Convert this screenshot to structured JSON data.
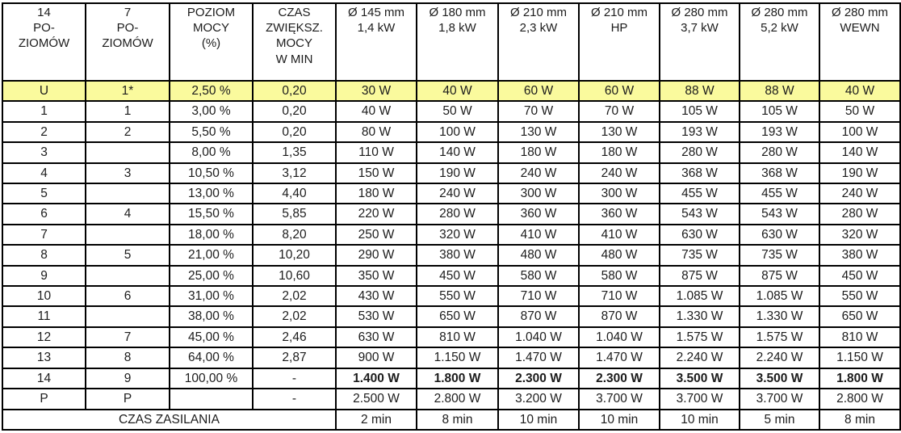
{
  "table": {
    "highlight_color": "#fafa9d",
    "border_color": "#000000",
    "text_color": "#1c1c1c",
    "headers": [
      "14\nPO-\nZIOMÓW",
      "7\nPO-\nZIOMÓW",
      "POZIOM\nMOCY\n(%)",
      "CZAS\nZWIĘKSZ.\nMOCY\nW MIN",
      "Ø 145 mm\n1,4 kW",
      "Ø 180 mm\n1,8 kW",
      "Ø 210 mm\n2,3 kW",
      "Ø 210 mm\nHP",
      "Ø 280 mm\n3,7 kW",
      "Ø 280 mm\n5,2 kW",
      "Ø 280 mm\nWEWN"
    ],
    "rows": [
      {
        "highlight": true,
        "bold_values": false,
        "cells": [
          "U",
          "1*",
          "2,50 %",
          "0,20",
          "30 W",
          "40 W",
          "60 W",
          "60 W",
          "88 W",
          "88 W",
          "40 W"
        ]
      },
      {
        "highlight": false,
        "bold_values": false,
        "cells": [
          "1",
          "1",
          "3,00 %",
          "0,20",
          "40 W",
          "50 W",
          "70 W",
          "70 W",
          "105 W",
          "105 W",
          "50 W"
        ]
      },
      {
        "highlight": false,
        "bold_values": false,
        "cells": [
          "2",
          "2",
          "5,50 %",
          "0,20",
          "80 W",
          "100 W",
          "130 W",
          "130 W",
          "193 W",
          "193 W",
          "100 W"
        ]
      },
      {
        "highlight": false,
        "bold_values": false,
        "cells": [
          "3",
          "",
          "8,00 %",
          "1,35",
          "110 W",
          "140 W",
          "180 W",
          "180 W",
          "280 W",
          "280 W",
          "140 W"
        ]
      },
      {
        "highlight": false,
        "bold_values": false,
        "cells": [
          "4",
          "3",
          "10,50 %",
          "3,12",
          "150 W",
          "190 W",
          "240 W",
          "240 W",
          "368 W",
          "368 W",
          "190 W"
        ]
      },
      {
        "highlight": false,
        "bold_values": false,
        "cells": [
          "5",
          "",
          "13,00 %",
          "4,40",
          "180 W",
          "240 W",
          "300 W",
          "300 W",
          "455 W",
          "455 W",
          "240 W"
        ]
      },
      {
        "highlight": false,
        "bold_values": false,
        "cells": [
          "6",
          "4",
          "15,50 %",
          "5,85",
          "220 W",
          "280 W",
          "360 W",
          "360 W",
          "543 W",
          "543 W",
          "280 W"
        ]
      },
      {
        "highlight": false,
        "bold_values": false,
        "cells": [
          "7",
          "",
          "18,00 %",
          "8,20",
          "250 W",
          "320 W",
          "410 W",
          "410 W",
          "630 W",
          "630 W",
          "320 W"
        ]
      },
      {
        "highlight": false,
        "bold_values": false,
        "cells": [
          "8",
          "5",
          "21,00 %",
          "10,20",
          "290 W",
          "380 W",
          "480 W",
          "480 W",
          "735 W",
          "735 W",
          "380 W"
        ]
      },
      {
        "highlight": false,
        "bold_values": false,
        "cells": [
          "9",
          "",
          "25,00 %",
          "10,60",
          "350 W",
          "450 W",
          "580 W",
          "580 W",
          "875 W",
          "875 W",
          "450 W"
        ]
      },
      {
        "highlight": false,
        "bold_values": false,
        "cells": [
          "10",
          "6",
          "31,00 %",
          "2,02",
          "430 W",
          "550 W",
          "710 W",
          "710 W",
          "1.085 W",
          "1.085 W",
          "550 W"
        ]
      },
      {
        "highlight": false,
        "bold_values": false,
        "cells": [
          "11",
          "",
          "38,00 %",
          "2,02",
          "530 W",
          "650 W",
          "870 W",
          "870 W",
          "1.330 W",
          "1.330 W",
          "650 W"
        ]
      },
      {
        "highlight": false,
        "bold_values": false,
        "cells": [
          "12",
          "7",
          "45,00 %",
          "2,46",
          "630 W",
          "810 W",
          "1.040 W",
          "1.040 W",
          "1.575 W",
          "1.575 W",
          "810 W"
        ]
      },
      {
        "highlight": false,
        "bold_values": false,
        "cells": [
          "13",
          "8",
          "64,00 %",
          "2,87",
          "900 W",
          "1.150 W",
          "1.470 W",
          "1.470 W",
          "2.240 W",
          "2.240 W",
          "1.150 W"
        ]
      },
      {
        "highlight": false,
        "bold_values": true,
        "cells": [
          "14",
          "9",
          "100,00 %",
          "-",
          "1.400 W",
          "1.800 W",
          "2.300 W",
          "2.300 W",
          "3.500 W",
          "3.500 W",
          "1.800 W"
        ]
      },
      {
        "highlight": false,
        "bold_values": false,
        "cells": [
          "P",
          "P",
          "",
          "-",
          "2.500 W",
          "2.800 W",
          "3.200 W",
          "3.700 W",
          "3.700 W",
          "3.700 W",
          "2.800 W"
        ]
      }
    ],
    "footer": {
      "label": "CZAS ZASILANIA",
      "values": [
        "2 min",
        "8 min",
        "10 min",
        "10 min",
        "10 min",
        "5 min",
        "8 min"
      ]
    }
  }
}
